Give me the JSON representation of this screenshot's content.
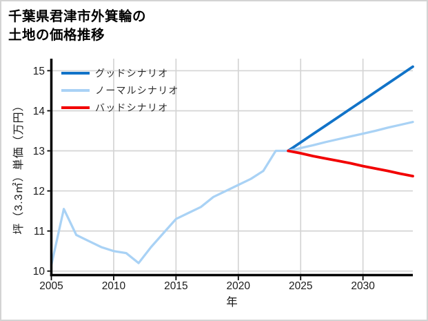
{
  "page": {
    "background": "#ffffff",
    "border_color": "#d3d3d3"
  },
  "title": {
    "line1": "千葉県君津市外箕輪の",
    "line2": "土地の価格推移"
  },
  "chart_data": {
    "type": "line",
    "title": "千葉県君津市外箕輪の土地の価格推移",
    "xlabel": "年",
    "ylabel": "坪（3.3㎡）単価（万円）",
    "xlim": [
      2005,
      2034
    ],
    "ylim": [
      9.9,
      15.3
    ],
    "x_ticks": [
      2005,
      2010,
      2015,
      2020,
      2025,
      2030
    ],
    "y_ticks": [
      10,
      11,
      12,
      13,
      14,
      15
    ],
    "grid": true,
    "grid_color": "#d4d4d4",
    "axis_color": "#000000",
    "tick_label_color": "#1a1a1a",
    "legend_position": "upper-left",
    "series": [
      {
        "name": "グッドシナリオ",
        "color": "#1173c8",
        "x": [
          2024,
          2025,
          2026,
          2027,
          2028,
          2029,
          2030,
          2031,
          2032,
          2033,
          2034
        ],
        "values": [
          13.0,
          13.21,
          13.42,
          13.63,
          13.84,
          14.05,
          14.26,
          14.47,
          14.68,
          14.89,
          15.1
        ]
      },
      {
        "name": "ノーマルシナリオ",
        "color": "#a9d2f5",
        "x": [
          2005,
          2006,
          2007,
          2008,
          2009,
          2010,
          2011,
          2012,
          2013,
          2014,
          2015,
          2016,
          2017,
          2018,
          2019,
          2020,
          2021,
          2022,
          2023,
          2024,
          2025,
          2026,
          2027,
          2028,
          2029,
          2030,
          2031,
          2032,
          2033,
          2034
        ],
        "values": [
          10.15,
          11.55,
          10.9,
          10.75,
          10.6,
          10.5,
          10.45,
          10.2,
          10.6,
          10.95,
          11.3,
          11.45,
          11.6,
          11.85,
          12.0,
          12.15,
          12.3,
          12.5,
          13.0,
          13.0,
          13.07,
          13.14,
          13.22,
          13.29,
          13.36,
          13.43,
          13.5,
          13.58,
          13.65,
          13.72
        ]
      },
      {
        "name": "バッドシナリオ",
        "color": "#f20000",
        "x": [
          2024,
          2025,
          2026,
          2027,
          2028,
          2029,
          2030,
          2031,
          2032,
          2033,
          2034
        ],
        "values": [
          13.0,
          12.94,
          12.87,
          12.81,
          12.75,
          12.69,
          12.62,
          12.56,
          12.5,
          12.43,
          12.37
        ]
      }
    ]
  }
}
